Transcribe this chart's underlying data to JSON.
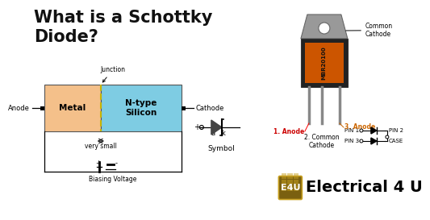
{
  "title_line1": "What is a Schottky",
  "title_line2": "Diode?",
  "title_fontsize": 16,
  "title_color": "#111111",
  "bg_color": "#ffffff",
  "metal_color": "#f4c08a",
  "silicon_color": "#7ecce3",
  "junction_color": "#c8b400",
  "label_anode": "Anode",
  "label_cathode": "Cathode",
  "label_metal": "Metal",
  "label_silicon": "N-type\nSilicon",
  "label_junction": "Junction",
  "label_very_small": "very small",
  "label_bias": "Biasing Voltage",
  "label_symbol": "Symbol",
  "label_pin1": "PIN 1",
  "label_pin2": "PIN 2",
  "label_pin3": "PIN 3",
  "label_case": "CASE",
  "label_common_cathode_top": "Common\nCathode",
  "label_1anode": "1. Anode",
  "label_2cathode": "2. Common\nCathode",
  "label_3anode": "3. Anode",
  "anode_label_color": "#cc0000",
  "anode3_label_color": "#cc6600",
  "e4u_bg": "#7a6010",
  "electrical4u": "Electrical 4 U",
  "e4u_text": "E4U",
  "diode_body_color": "#222222",
  "diode_tab_color": "#999999",
  "diode_orange": "#cc5500",
  "pin_color": "#888888"
}
